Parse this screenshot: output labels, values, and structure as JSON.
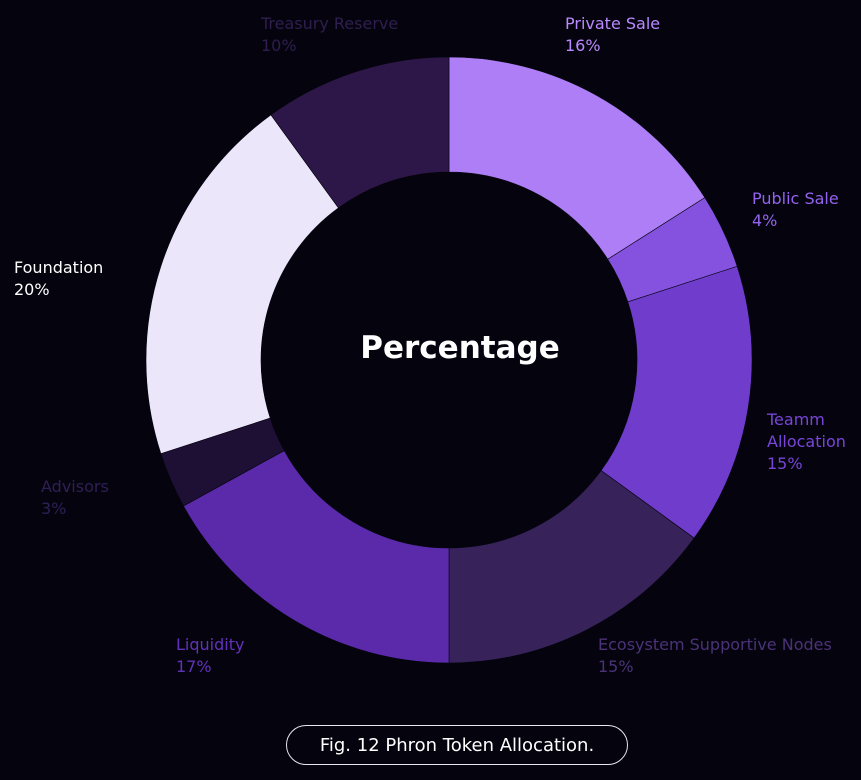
{
  "chart_data": {
    "type": "pie",
    "title": "Percentage",
    "slices": [
      {
        "label": "Private Sale",
        "value": 16,
        "pct_text": "16%",
        "color": "#ad7ef6",
        "label_color": "#b989ff"
      },
      {
        "label": "Public Sale",
        "value": 4,
        "pct_text": "4%",
        "color": "#8452de",
        "label_color": "#9462ee"
      },
      {
        "label": "Teamm Allocation",
        "value": 15,
        "pct_text": "15%",
        "color": "#6f3ccb",
        "label_color": "#7845d8"
      },
      {
        "label": "Ecosystem Supportive Nodes",
        "value": 15,
        "pct_text": "15%",
        "color": "#37225a",
        "label_color": "#4b3278"
      },
      {
        "label": "Liquidity",
        "value": 17,
        "pct_text": "17%",
        "color": "#5a2aab",
        "label_color": "#6332ba"
      },
      {
        "label": "Advisors",
        "value": 3,
        "pct_text": "3%",
        "color": "#1e0f35",
        "label_color": "#2f1f55"
      },
      {
        "label": "Foundation",
        "value": 20,
        "pct_text": "20%",
        "color": "#ece6fb",
        "label_color": "#ffffff"
      },
      {
        "label": "Treasury Reserve",
        "value": 10,
        "pct_text": "10%",
        "color": "#2c1748",
        "label_color": "#2f1e4f"
      }
    ]
  },
  "caption": "Fig. 12  Phron Token Allocation."
}
